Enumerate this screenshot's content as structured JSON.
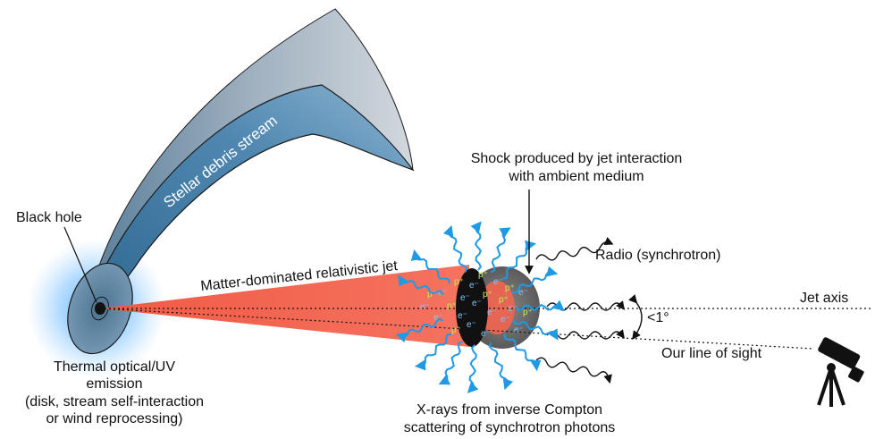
{
  "labels": {
    "stream": "Stellar debris stream",
    "black_hole": "Black hole",
    "jet": "Matter-dominated relativistic jet",
    "shock_line1": "Shock produced by jet interaction",
    "shock_line2": "with ambient medium",
    "radio": "Radio (synchrotron)",
    "jet_axis": "Jet axis",
    "angle": "<1°",
    "line_of_sight": "Our line of sight",
    "thermal_line1": "Thermal optical/UV",
    "thermal_line2": "emission",
    "thermal_line3": "(disk, stream self-interaction",
    "thermal_line4": "or wind reprocessing)",
    "xray_line1": "X-rays from inverse Compton",
    "xray_line2": "scattering of synchrotron photons"
  },
  "particle_symbols": {
    "electron": "e⁻",
    "proton": "p⁺"
  },
  "colors": {
    "jet": "#f26450",
    "stream_light": "#b9c2cb",
    "stream_blue": "#4a7fa6",
    "glow": "#3aa0ff",
    "xray_arrows": "#1e9ae6",
    "electron": "#7ec8ff",
    "proton": "#c6e85a",
    "shock": "#6a6a6a"
  },
  "icons": [
    "telescope-icon",
    "black-hole-icon"
  ]
}
